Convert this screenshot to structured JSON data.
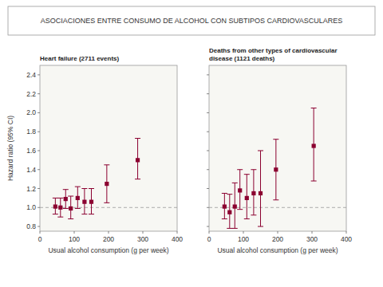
{
  "title": "ASOCIACIONES ENTRE CONSUMO DE ALCOHOL CON SUBTIPOS CARDIOVASCULARES",
  "chart_data": [
    {
      "type": "scatter",
      "title": "Heart failure (2711 events)",
      "xlabel": "Usual alcohol consumption (g per week)",
      "ylabel": "Hazard ratio (95% CI)",
      "color": "#8b0030",
      "marker": "square",
      "xlim": [
        0,
        400
      ],
      "ylim": [
        0.75,
        2.5
      ],
      "xticks": [
        0,
        100,
        200,
        300,
        400
      ],
      "yticks": [
        0.8,
        {
          "value": 1.0,
          "label": "1.0"
        },
        1.2,
        1.4,
        1.6,
        1.8,
        {
          "value": 2.0,
          "label": "2.0"
        },
        2.2,
        2.4
      ],
      "reference_line": 1.0,
      "x": [
        45,
        60,
        75,
        90,
        110,
        130,
        150,
        195,
        285
      ],
      "values": [
        1.01,
        1.0,
        1.09,
        0.99,
        1.1,
        1.06,
        1.06,
        1.25,
        1.5
      ],
      "error_low": [
        0.93,
        0.9,
        0.99,
        0.88,
        0.99,
        0.93,
        0.93,
        1.05,
        1.3
      ],
      "error_high": [
        1.1,
        1.1,
        1.19,
        1.12,
        1.22,
        1.2,
        1.2,
        1.45,
        1.73
      ]
    },
    {
      "type": "scatter",
      "title": "Deaths from other types of cardiovascular\ndisease (1121 deaths)",
      "xlabel": "Usual alcohol consumption (g per week)",
      "color": "#8b0030",
      "marker": "square",
      "tick_labels": "x",
      "xlim": [
        0,
        400
      ],
      "ylim": [
        0.75,
        2.5
      ],
      "xticks": [
        0,
        100,
        200,
        300,
        400
      ],
      "yticks": [
        0.8,
        1.0,
        1.2,
        1.4,
        1.6,
        1.8,
        2.0,
        2.2,
        2.4
      ],
      "reference_line": 1.0,
      "x": [
        45,
        60,
        75,
        90,
        110,
        130,
        150,
        195,
        305
      ],
      "values": [
        1.01,
        0.95,
        1.01,
        1.18,
        1.1,
        1.15,
        1.15,
        1.4,
        1.65
      ],
      "error_low": [
        0.88,
        0.78,
        0.78,
        0.98,
        0.88,
        0.92,
        0.8,
        1.08,
        1.28
      ],
      "error_high": [
        1.15,
        1.14,
        1.26,
        1.4,
        1.35,
        1.4,
        1.6,
        1.72,
        2.05
      ]
    }
  ]
}
